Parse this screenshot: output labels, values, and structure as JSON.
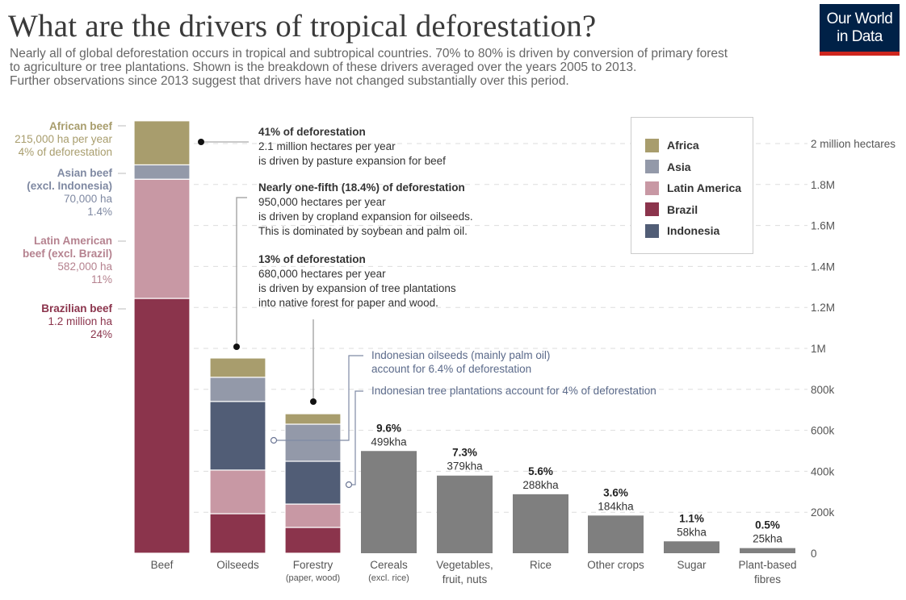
{
  "header": {
    "title": "What are the drivers of tropical deforestation?",
    "subtitle_lines": [
      "Nearly all of global deforestation occurs in tropical and subtropical countries. 70% to 80% is driven by conversion of primary forest",
      "to agriculture or tree plantations. Shown is the breakdown of these drivers averaged over the years 2005 to 2013.",
      "Further observations  since 2013 suggest that drivers have not changed substantially over this period."
    ],
    "logo_line1": "Our World",
    "logo_line2": "in Data"
  },
  "colors": {
    "Africa": "#a89d6d",
    "Asia": "#9399a9",
    "Latin America": "#c898a4",
    "Brazil": "#8b344c",
    "Indonesia": "#515d76",
    "other": "#7f7f7f",
    "indonesia_note": "#5b6a8a",
    "logo_bg": "#002147",
    "logo_band": "#ce261e"
  },
  "legend": {
    "items": [
      {
        "label": "Africa",
        "color": "#a89d6d"
      },
      {
        "label": "Asia",
        "color": "#9399a9"
      },
      {
        "label": "Latin America",
        "color": "#c898a4"
      },
      {
        "label": "Brazil",
        "color": "#8b344c"
      },
      {
        "label": "Indonesia",
        "color": "#515d76"
      }
    ]
  },
  "left_labels": [
    {
      "head": "African beef",
      "lines": [
        "215,000 ha per year",
        "4% of deforestation"
      ],
      "color": "#a89d6d"
    },
    {
      "head": "Asian beef",
      "lines": [
        "(excl. Indonesia)",
        "70,000 ha",
        "1.4%"
      ],
      "color": "#7f89a2"
    },
    {
      "head": "Latin American",
      "lines": [
        "beef (excl. Brazil)",
        "582,000 ha",
        "11%"
      ],
      "color": "#b5828f"
    },
    {
      "head": "Brazilian beef",
      "lines": [
        "1.2 million ha",
        "24%"
      ],
      "color": "#8b344c"
    }
  ],
  "annotations": [
    {
      "head": "41% of deforestation",
      "lines": [
        "2.1 million hectares per year",
        "is driven by pasture expansion for beef"
      ]
    },
    {
      "head": "Nearly one-fifth (18.4%) of deforestation",
      "lines": [
        "950,000 hectares per year",
        "is driven by cropland expansion for oilseeds.",
        "This is dominated by soybean and palm oil."
      ]
    },
    {
      "head": "13% of deforestation",
      "lines": [
        "680,000 hectares per year",
        "is driven by expansion of tree plantations",
        "into native forest for paper and wood."
      ]
    }
  ],
  "indonesia_notes": [
    {
      "lines": [
        "Indonesian oilseeds (mainly palm oil)",
        "account for 6.4% of deforestation"
      ]
    },
    {
      "lines": [
        "Indonesian tree plantations account for 4% of deforestation"
      ]
    }
  ],
  "chart_data": {
    "type": "bar",
    "stacked": true,
    "title": "What are the drivers of tropical deforestation?",
    "ylabel": "hectares per year",
    "ylim": [
      0,
      2000000
    ],
    "yticks": [
      {
        "value": 0,
        "label": "0"
      },
      {
        "value": 200000,
        "label": "200k"
      },
      {
        "value": 400000,
        "label": "400k"
      },
      {
        "value": 600000,
        "label": "600k"
      },
      {
        "value": 800000,
        "label": "800k"
      },
      {
        "value": 1000000,
        "label": "1M"
      },
      {
        "value": 1200000,
        "label": "1.2M"
      },
      {
        "value": 1400000,
        "label": "1.4M"
      },
      {
        "value": 1600000,
        "label": "1.6M"
      },
      {
        "value": 1800000,
        "label": "1.8M"
      },
      {
        "value": 2000000,
        "label": "2 million hectares"
      }
    ],
    "grid": true,
    "legend_position": "top-right",
    "categories": [
      {
        "label": "Beef",
        "sublabel": ""
      },
      {
        "label": "Oilseeds",
        "sublabel": ""
      },
      {
        "label": "Forestry",
        "sublabel": "(paper, wood)"
      },
      {
        "label": "Cereals",
        "sublabel": "(excl. rice)"
      },
      {
        "label": "Vegetables,",
        "sublabel": "fruit, nuts"
      },
      {
        "label": "Rice",
        "sublabel": ""
      },
      {
        "label": "Other crops",
        "sublabel": ""
      },
      {
        "label": "Sugar",
        "sublabel": ""
      },
      {
        "label": "Plant-based",
        "sublabel": "fibres"
      }
    ],
    "stacked_bars": [
      {
        "category": "Beef",
        "segments": [
          {
            "region": "Brazil",
            "value": 1244000
          },
          {
            "region": "Latin America",
            "value": 582000
          },
          {
            "region": "Asia",
            "value": 70000
          },
          {
            "region": "Africa",
            "value": 215000
          }
        ]
      },
      {
        "category": "Oilseeds",
        "segments": [
          {
            "region": "Brazil",
            "value": 193000
          },
          {
            "region": "Latin America",
            "value": 213000
          },
          {
            "region": "Indonesia",
            "value": 335000
          },
          {
            "region": "Asia",
            "value": 118000
          },
          {
            "region": "Africa",
            "value": 94000
          }
        ]
      },
      {
        "category": "Forestry",
        "segments": [
          {
            "region": "Brazil",
            "value": 126000
          },
          {
            "region": "Latin America",
            "value": 114000
          },
          {
            "region": "Indonesia",
            "value": 209000
          },
          {
            "region": "Asia",
            "value": 181000
          },
          {
            "region": "Africa",
            "value": 51000
          }
        ]
      }
    ],
    "simple_bars": [
      {
        "category": "Cereals",
        "value": 499000,
        "pct_label": "9.6%",
        "value_label": "499kha"
      },
      {
        "category": "Vegetables, fruit, nuts",
        "value": 379000,
        "pct_label": "7.3%",
        "value_label": "379kha"
      },
      {
        "category": "Rice",
        "value": 288000,
        "pct_label": "5.6%",
        "value_label": "288kha"
      },
      {
        "category": "Other crops",
        "value": 184000,
        "pct_label": "3.6%",
        "value_label": "184kha"
      },
      {
        "category": "Sugar",
        "value": 58000,
        "pct_label": "1.1%",
        "value_label": "58kha"
      },
      {
        "category": "Plant-based fibres",
        "value": 25000,
        "pct_label": "0.5%",
        "value_label": "25kha"
      }
    ]
  }
}
